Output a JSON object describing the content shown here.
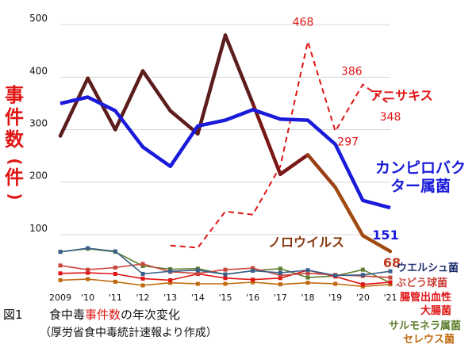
{
  "chart_data": {
    "type": "line",
    "ylabel_chars": [
      "事",
      "件",
      "数",
      "(",
      "件",
      ")"
    ],
    "yticks": [
      100,
      200,
      300,
      400,
      500
    ],
    "ylim": [
      0,
      520
    ],
    "xticks": [
      "2009",
      "'10",
      "'11",
      "'12",
      "'13",
      "'14",
      "'15",
      "'16",
      "'17",
      "'18",
      "'19",
      "'20",
      "'21"
    ],
    "caption": {
      "fig": "図1",
      "line1_pre": "食中毒",
      "line1_highlight": "事件数",
      "line1_post": "の年次変化",
      "line2": "（厚労省食中毒統計速報より作成）"
    },
    "series": [
      {
        "key": "campylo",
        "name_lines": [
          "カンピロバク",
          "ター属菌"
        ],
        "color": "#1a1adb",
        "x": [
          2009,
          2010,
          2011,
          2012,
          2013,
          2014,
          2015,
          2016,
          2017,
          2018,
          2019,
          2020,
          2021
        ],
        "values": [
          350,
          362,
          336,
          267,
          230,
          307,
          318,
          338,
          320,
          318,
          272,
          165,
          151
        ],
        "labels": [
          {
            "x": 2021,
            "text": "151"
          }
        ]
      },
      {
        "key": "noro",
        "name_lines": [
          "ノロウイルス"
        ],
        "color": "#5c1d1d",
        "x": [
          2009,
          2010,
          2011,
          2012,
          2013,
          2014,
          2015,
          2016,
          2017,
          2018,
          2019,
          2020,
          2021
        ],
        "values": [
          288,
          398,
          300,
          412,
          336,
          292,
          480,
          350,
          215,
          252,
          190,
          98,
          68
        ],
        "labels": [
          {
            "x": 2021,
            "text": "68"
          }
        ]
      },
      {
        "key": "anisakis",
        "name_lines": [
          "アニサキス"
        ],
        "color": "#e01414",
        "dashed": true,
        "x": [
          2013,
          2014,
          2015,
          2016,
          2017,
          2018,
          2019,
          2020,
          2021
        ],
        "values": [
          79,
          75,
          144,
          138,
          230,
          468,
          297,
          386,
          348
        ],
        "labels": [
          {
            "x": 2018,
            "text": "468"
          },
          {
            "x": 2019,
            "text": "297"
          },
          {
            "x": 2020,
            "text": "386"
          },
          {
            "x": 2021,
            "text": "348"
          }
        ]
      },
      {
        "key": "welchii",
        "name_lines": [
          "ウエルシュ菌"
        ],
        "color": "#3a5f8a",
        "x": [
          2009,
          2010,
          2011,
          2012,
          2013,
          2014,
          2015,
          2016,
          2017,
          2018,
          2019,
          2020,
          2021
        ],
        "values": [
          67,
          74,
          68,
          25,
          30,
          32,
          24,
          31,
          27,
          32,
          22,
          23,
          30
        ]
      },
      {
        "key": "staph",
        "name_lines": [
          "ぶどう球菌"
        ],
        "color": "#c8453c",
        "x": [
          2009,
          2010,
          2011,
          2012,
          2013,
          2014,
          2015,
          2016,
          2017,
          2018,
          2019,
          2020,
          2021
        ],
        "values": [
          41,
          33,
          37,
          44,
          29,
          26,
          33,
          36,
          22,
          26,
          23,
          21,
          18
        ]
      },
      {
        "key": "ehec",
        "name_lines": [
          "腸管出血性",
          "大腸菌"
        ],
        "color": "#e01414",
        "x": [
          2009,
          2010,
          2011,
          2012,
          2013,
          2014,
          2015,
          2016,
          2017,
          2018,
          2019,
          2020,
          2021
        ],
        "values": [
          26,
          27,
          25,
          16,
          13,
          25,
          17,
          14,
          17,
          32,
          20,
          5,
          9
        ]
      },
      {
        "key": "salmonella",
        "name_lines": [
          "サルモネラ属菌"
        ],
        "color": "#5f7f2f",
        "x": [
          2009,
          2010,
          2011,
          2012,
          2013,
          2014,
          2015,
          2016,
          2017,
          2018,
          2019,
          2020,
          2021
        ],
        "values": [
          67,
          73,
          67,
          40,
          34,
          35,
          24,
          31,
          35,
          18,
          21,
          33,
          8
        ]
      },
      {
        "key": "cereus",
        "name_lines": [
          "セレウス菌"
        ],
        "color": "#c06a10",
        "x": [
          2009,
          2010,
          2011,
          2012,
          2013,
          2014,
          2015,
          2016,
          2017,
          2018,
          2019,
          2020,
          2021
        ],
        "values": [
          13,
          15,
          10,
          3,
          8,
          6,
          6,
          9,
          5,
          8,
          6,
          1,
          5
        ]
      }
    ],
    "grid": true
  }
}
